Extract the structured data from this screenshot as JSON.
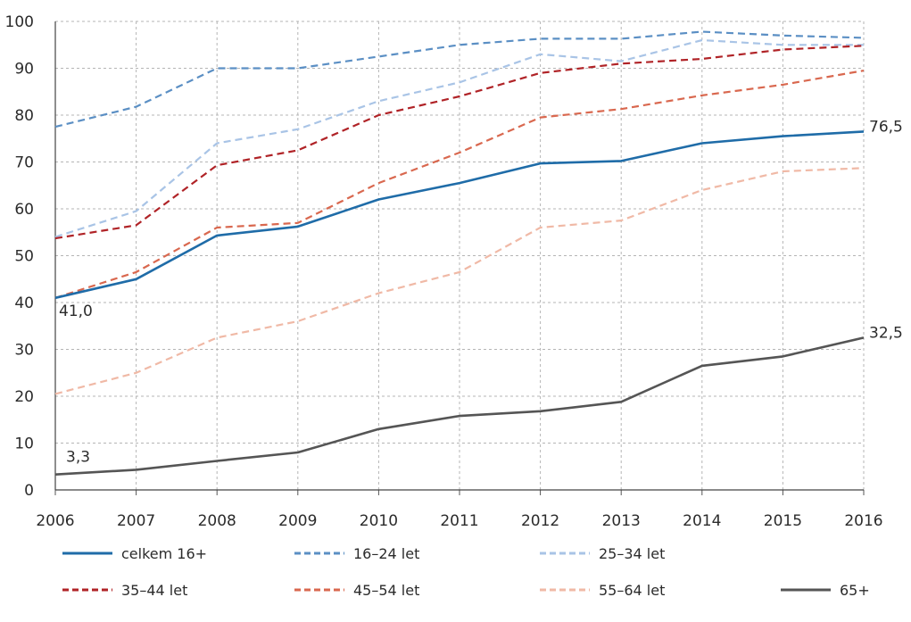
{
  "chart_data": {
    "type": "line",
    "x": [
      "2006",
      "2007",
      "2008",
      "2009",
      "2010",
      "2011",
      "2012",
      "2013",
      "2014",
      "2015",
      "2016"
    ],
    "ylim": [
      0,
      100
    ],
    "yticks": [
      "0",
      "10",
      "20",
      "30",
      "40",
      "50",
      "60",
      "70",
      "80",
      "90",
      "100"
    ],
    "grid": true,
    "legend_position": "bottom",
    "series": [
      {
        "name": "celkem 16+",
        "color": "#1f6ca8",
        "dash": "solid",
        "values": [
          41.0,
          45.0,
          54.3,
          56.2,
          62.0,
          65.5,
          69.7,
          70.2,
          74.0,
          75.5,
          76.5
        ]
      },
      {
        "name": "16–24 let",
        "color": "#5b8fc4",
        "dash": "dashed",
        "values": [
          77.5,
          81.8,
          90.0,
          90.0,
          92.5,
          95.0,
          96.3,
          96.3,
          97.8,
          97.0,
          96.5
        ]
      },
      {
        "name": "25–34 let",
        "color": "#a9c4e6",
        "dash": "dashed",
        "values": [
          54.0,
          59.5,
          74.0,
          77.0,
          83.0,
          87.0,
          93.0,
          91.5,
          96.0,
          95.0,
          95.0
        ]
      },
      {
        "name": "35–44 let",
        "color": "#b02327",
        "dash": "dashed",
        "values": [
          53.7,
          56.5,
          69.3,
          72.5,
          80.0,
          84.0,
          89.0,
          91.0,
          92.0,
          94.0,
          94.8
        ]
      },
      {
        "name": "45–54 let",
        "color": "#d9684f",
        "dash": "dashed",
        "values": [
          41.0,
          46.5,
          56.0,
          57.0,
          65.5,
          72.0,
          79.5,
          81.3,
          84.2,
          86.5,
          89.5
        ]
      },
      {
        "name": "55–64 let",
        "color": "#f0b9a6",
        "dash": "dashed",
        "values": [
          20.5,
          25.0,
          32.5,
          36.0,
          42.0,
          46.5,
          56.0,
          57.5,
          64.0,
          68.0,
          68.7
        ]
      },
      {
        "name": "65+",
        "color": "#555555",
        "dash": "solid",
        "values": [
          3.3,
          4.3,
          6.2,
          8.0,
          13.0,
          15.8,
          16.8,
          18.8,
          26.5,
          28.5,
          32.5
        ]
      }
    ],
    "annotations": [
      {
        "text": "41,0",
        "series": "celkem 16+",
        "x": "2006",
        "y": 41.0
      },
      {
        "text": "76,5",
        "series": "celkem 16+",
        "x": "2016",
        "y": 76.5
      },
      {
        "text": "3,3",
        "series": "65+",
        "x": "2006",
        "y": 3.3
      },
      {
        "text": "32,5",
        "series": "65+",
        "x": "2016",
        "y": 32.5
      }
    ]
  }
}
